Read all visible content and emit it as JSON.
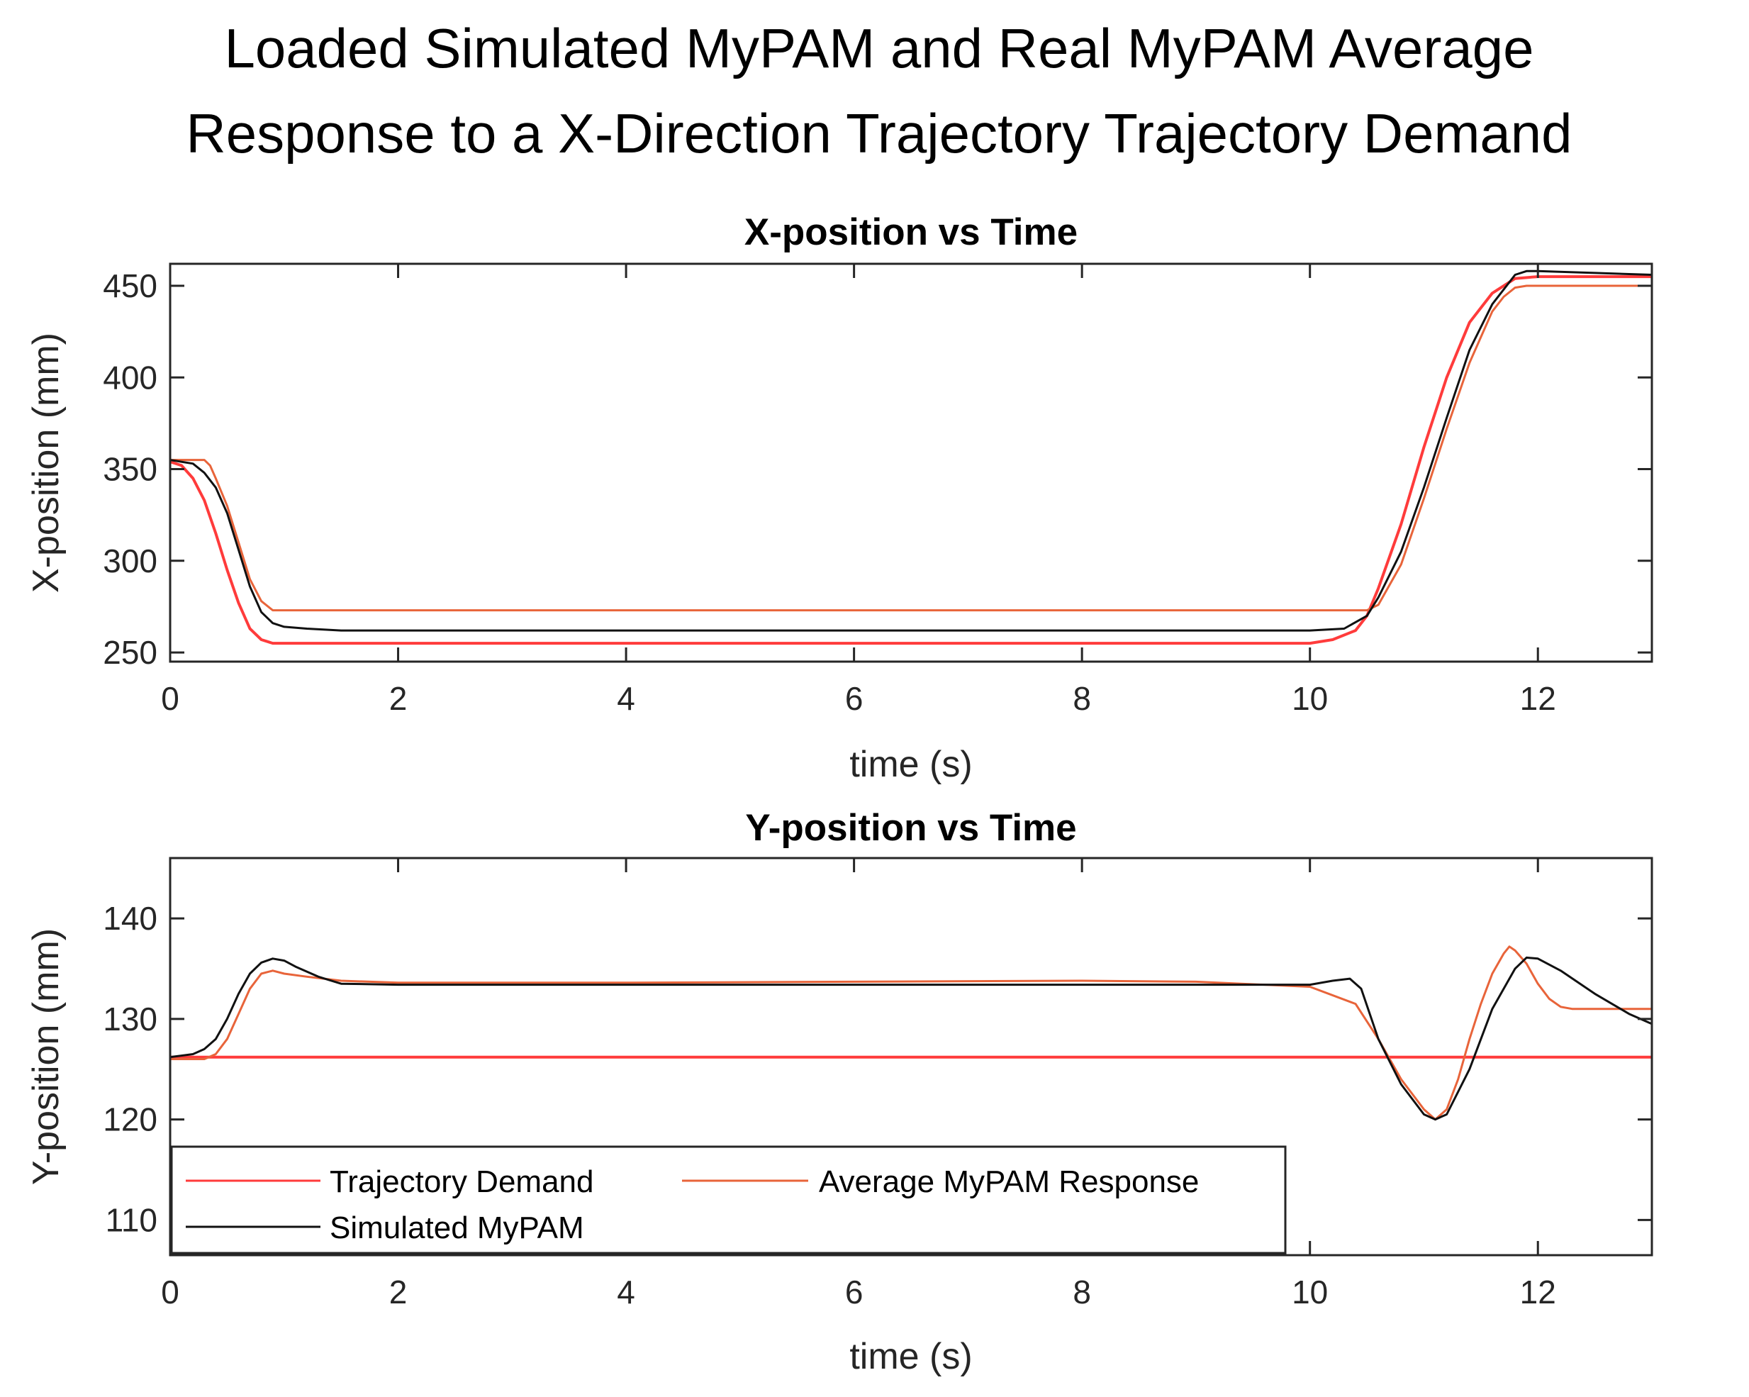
{
  "figure_title_line1": "Loaded Simulated MyPAM and Real MyPAM Average",
  "figure_title_line2": "Response to a X-Direction Trajectory Trajectory Demand",
  "colors": {
    "trajectory_demand": "#ff3b3b",
    "average_response": "#e8643a",
    "simulated": "#111111",
    "axes": "#262626"
  },
  "legend": {
    "location": "bottom-left of Y-position plot",
    "entries": [
      "Trajectory Demand",
      "Average MyPAM Response",
      "Simulated MyPAM"
    ]
  },
  "chart_data": [
    {
      "type": "line",
      "title": "X-position vs Time",
      "xlabel": "time (s)",
      "ylabel": "X-position (mm)",
      "xlim": [
        0,
        13
      ],
      "ylim": [
        245,
        462
      ],
      "xticks": [
        0,
        2,
        4,
        6,
        8,
        10,
        12
      ],
      "yticks": [
        250,
        300,
        350,
        400,
        450
      ],
      "grid": false,
      "series": [
        {
          "name": "Trajectory Demand",
          "x": [
            0,
            0.1,
            0.2,
            0.3,
            0.4,
            0.5,
            0.6,
            0.7,
            0.8,
            0.9,
            1.0,
            2,
            4,
            6,
            8,
            10,
            10.2,
            10.4,
            10.5,
            10.6,
            10.8,
            11.0,
            11.2,
            11.4,
            11.6,
            11.8,
            12.0,
            13
          ],
          "y": [
            354,
            352,
            345,
            333,
            315,
            295,
            277,
            263,
            257,
            255,
            255,
            255,
            255,
            255,
            255,
            255,
            257,
            262,
            270,
            285,
            320,
            362,
            400,
            430,
            446,
            454,
            455,
            455
          ]
        },
        {
          "name": "Average MyPAM Response",
          "x": [
            0,
            0.3,
            0.35,
            0.4,
            0.5,
            0.6,
            0.7,
            0.8,
            0.9,
            1.0,
            2,
            4,
            6,
            8,
            10,
            10.5,
            10.6,
            10.8,
            11.0,
            11.2,
            11.4,
            11.5,
            11.6,
            11.7,
            11.8,
            11.9,
            12.0,
            13
          ],
          "y": [
            355,
            355,
            352,
            345,
            330,
            310,
            290,
            278,
            273,
            273,
            273,
            273,
            273,
            273,
            273,
            273,
            276,
            298,
            334,
            372,
            408,
            422,
            436,
            444,
            449,
            450,
            450,
            450
          ]
        },
        {
          "name": "Simulated MyPAM",
          "x": [
            0,
            0.2,
            0.3,
            0.4,
            0.5,
            0.6,
            0.7,
            0.8,
            0.9,
            1.0,
            1.2,
            1.5,
            2,
            4,
            6,
            8,
            10,
            10.3,
            10.5,
            10.6,
            10.8,
            11.0,
            11.2,
            11.4,
            11.6,
            11.8,
            11.9,
            12.0,
            12.5,
            13
          ],
          "y": [
            355,
            353,
            348,
            340,
            326,
            306,
            286,
            272,
            266,
            264,
            263,
            262,
            262,
            262,
            262,
            262,
            262,
            263,
            270,
            280,
            305,
            340,
            378,
            415,
            440,
            456,
            458,
            458,
            457,
            456
          ]
        }
      ]
    },
    {
      "type": "line",
      "title": "Y-position vs Time",
      "xlabel": "time (s)",
      "ylabel": "Y-position (mm)",
      "xlim": [
        0,
        13
      ],
      "ylim": [
        106.5,
        146
      ],
      "xticks": [
        0,
        2,
        4,
        6,
        8,
        10,
        12
      ],
      "yticks": [
        110,
        120,
        130,
        140
      ],
      "grid": false,
      "series": [
        {
          "name": "Trajectory Demand",
          "x": [
            0,
            13
          ],
          "y": [
            126.2,
            126.2
          ]
        },
        {
          "name": "Average MyPAM Response",
          "x": [
            0,
            0.3,
            0.4,
            0.5,
            0.6,
            0.7,
            0.8,
            0.9,
            1.0,
            1.2,
            1.5,
            2,
            4,
            6,
            8,
            9,
            10,
            10.4,
            10.6,
            10.8,
            11.0,
            11.1,
            11.2,
            11.3,
            11.4,
            11.5,
            11.6,
            11.7,
            11.75,
            11.8,
            11.9,
            12.0,
            12.1,
            12.2,
            12.3,
            13
          ],
          "y": [
            126,
            126,
            126.5,
            128,
            130.5,
            133,
            134.5,
            134.8,
            134.5,
            134.2,
            133.8,
            133.6,
            133.6,
            133.7,
            133.8,
            133.7,
            133.2,
            131.5,
            128,
            124,
            121,
            120,
            121,
            124,
            128,
            131.5,
            134.5,
            136.5,
            137.2,
            136.8,
            135.5,
            133.5,
            132,
            131.2,
            131,
            131
          ]
        },
        {
          "name": "Simulated MyPAM",
          "x": [
            0,
            0.2,
            0.3,
            0.4,
            0.5,
            0.6,
            0.7,
            0.8,
            0.9,
            1.0,
            1.1,
            1.3,
            1.5,
            2,
            4,
            6,
            8,
            10,
            10.2,
            10.35,
            10.45,
            10.6,
            10.8,
            11.0,
            11.1,
            11.2,
            11.4,
            11.6,
            11.8,
            11.9,
            12.0,
            12.2,
            12.5,
            12.8,
            13
          ],
          "y": [
            126.2,
            126.5,
            127,
            128,
            130,
            132.5,
            134.5,
            135.6,
            136,
            135.8,
            135.2,
            134.2,
            133.5,
            133.4,
            133.4,
            133.4,
            133.4,
            133.4,
            133.8,
            134,
            133,
            128,
            123.5,
            120.5,
            120,
            120.5,
            125,
            131,
            135,
            136.1,
            136,
            134.8,
            132.5,
            130.5,
            129.5
          ]
        }
      ]
    }
  ]
}
